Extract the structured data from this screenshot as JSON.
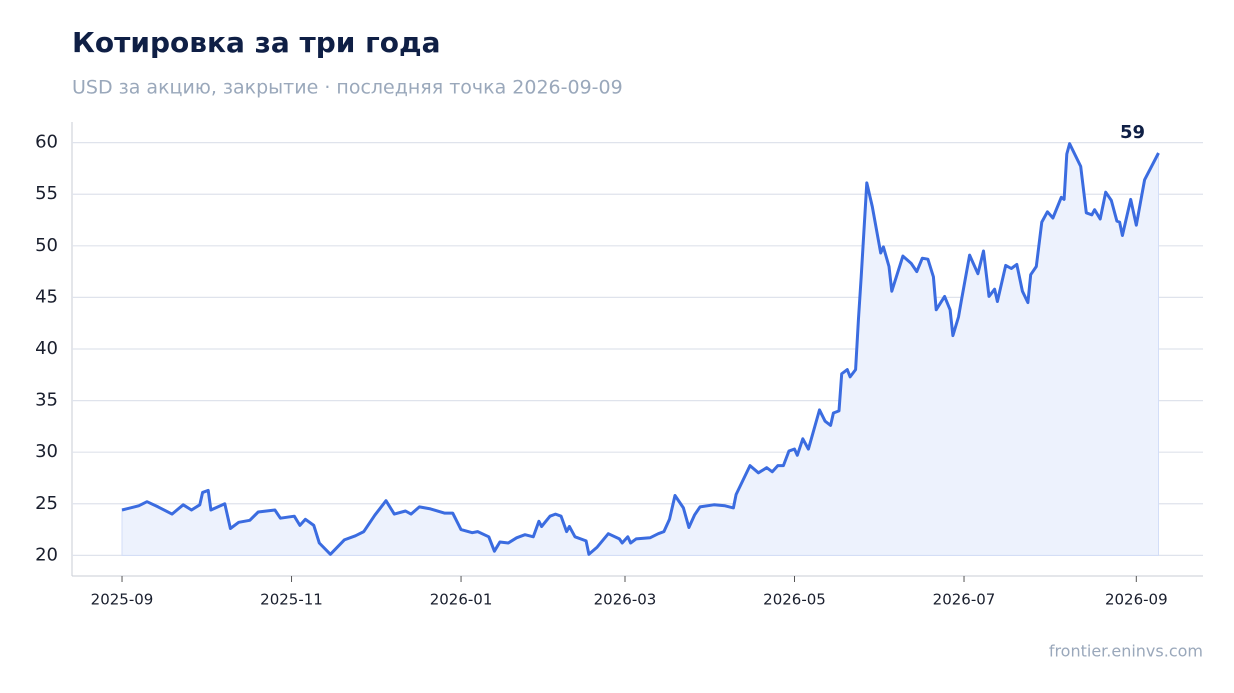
{
  "chart_data": {
    "type": "line",
    "title": "Котировка за три года",
    "subtitle": "USD за акцию, закрытие · последняя точка 2026-09-09",
    "source": "frontier.eninvs.com",
    "x": [
      "2025-09-01",
      "2025-09-07",
      "2025-09-10",
      "2025-09-14",
      "2025-09-19",
      "2025-09-23",
      "2025-09-26",
      "2025-09-29",
      "2025-09-30",
      "2025-10-02",
      "2025-10-03",
      "2025-10-08",
      "2025-10-10",
      "2025-10-13",
      "2025-10-17",
      "2025-10-20",
      "2025-10-26",
      "2025-10-28",
      "2025-11-02",
      "2025-11-04",
      "2025-11-06",
      "2025-11-09",
      "2025-11-11",
      "2025-11-15",
      "2025-11-20",
      "2025-11-24",
      "2025-11-27",
      "2025-12-01",
      "2025-12-05",
      "2025-12-08",
      "2025-12-12",
      "2025-12-14",
      "2025-12-17",
      "2025-12-21",
      "2025-12-26",
      "2025-12-29",
      "2026-01-01",
      "2026-01-05",
      "2026-01-07",
      "2026-01-11",
      "2026-01-13",
      "2026-01-15",
      "2026-01-18",
      "2026-01-21",
      "2026-01-24",
      "2026-01-27",
      "2026-01-29",
      "2026-01-30",
      "2026-02-02",
      "2026-02-04",
      "2026-02-06",
      "2026-02-08",
      "2026-02-09",
      "2026-02-11",
      "2026-02-15",
      "2026-02-16",
      "2026-02-19",
      "2026-02-23",
      "2026-02-27",
      "2026-02-28",
      "2026-03-02",
      "2026-03-03",
      "2026-03-05",
      "2026-03-10",
      "2026-03-13",
      "2026-03-15",
      "2026-03-17",
      "2026-03-19",
      "2026-03-22",
      "2026-03-24",
      "2026-03-26",
      "2026-03-28",
      "2026-04-02",
      "2026-04-06",
      "2026-04-09",
      "2026-04-10",
      "2026-04-15",
      "2026-04-18",
      "2026-04-21",
      "2026-04-23",
      "2026-04-25",
      "2026-04-27",
      "2026-04-29",
      "2026-05-01",
      "2026-05-02",
      "2026-05-04",
      "2026-05-06",
      "2026-05-10",
      "2026-05-12",
      "2026-05-14",
      "2026-05-15",
      "2026-05-17",
      "2026-05-18",
      "2026-05-20",
      "2026-05-21",
      "2026-05-23",
      "2026-05-24",
      "2026-05-25",
      "2026-05-27",
      "2026-05-29",
      "2026-06-01",
      "2026-06-02",
      "2026-06-04",
      "2026-06-05",
      "2026-06-09",
      "2026-06-12",
      "2026-06-14",
      "2026-06-16",
      "2026-06-18",
      "2026-06-20",
      "2026-06-21",
      "2026-06-24",
      "2026-06-26",
      "2026-06-27",
      "2026-06-29",
      "2026-06-30",
      "2026-07-03",
      "2026-07-06",
      "2026-07-08",
      "2026-07-10",
      "2026-07-12",
      "2026-07-13",
      "2026-07-16",
      "2026-07-18",
      "2026-07-20",
      "2026-07-22",
      "2026-07-24",
      "2026-07-25",
      "2026-07-27",
      "2026-07-29",
      "2026-07-31",
      "2026-08-02",
      "2026-08-05",
      "2026-08-06",
      "2026-08-07",
      "2026-08-08",
      "2026-08-12",
      "2026-08-14",
      "2026-08-16",
      "2026-08-17",
      "2026-08-19",
      "2026-08-21",
      "2026-08-23",
      "2026-08-25",
      "2026-08-26",
      "2026-08-27",
      "2026-08-30",
      "2026-09-01",
      "2026-09-04",
      "2026-09-09"
    ],
    "series": [
      {
        "name": "Котировка",
        "color": "#3b6ce0",
        "fill": "#edf2fd",
        "values": [
          24.4,
          24.8,
          25.2,
          24.7,
          24.0,
          24.9,
          24.4,
          24.9,
          26.1,
          26.3,
          24.4,
          25.0,
          22.6,
          23.2,
          23.4,
          24.2,
          24.4,
          23.6,
          23.8,
          22.9,
          23.5,
          22.9,
          21.2,
          20.1,
          21.5,
          21.9,
          22.3,
          23.9,
          25.3,
          24.0,
          24.3,
          24.0,
          24.7,
          24.5,
          24.1,
          24.1,
          22.5,
          22.2,
          22.3,
          21.8,
          20.4,
          21.3,
          21.2,
          21.7,
          22.0,
          21.8,
          23.3,
          22.8,
          23.8,
          24.0,
          23.8,
          22.3,
          22.8,
          21.8,
          21.4,
          20.1,
          20.8,
          22.1,
          21.6,
          21.2,
          21.8,
          21.2,
          21.6,
          21.7,
          22.1,
          22.3,
          23.5,
          25.8,
          24.6,
          22.7,
          23.9,
          24.7,
          24.9,
          24.8,
          24.6,
          25.9,
          28.7,
          28.0,
          28.5,
          28.1,
          28.7,
          28.7,
          30.1,
          30.3,
          29.7,
          31.3,
          30.3,
          34.1,
          33.0,
          32.6,
          33.8,
          34.0,
          37.6,
          38.0,
          37.3,
          38.0,
          42.8,
          47.0,
          56.1,
          53.8,
          49.3,
          49.9,
          48.0,
          45.6,
          49.0,
          48.3,
          47.5,
          48.8,
          48.7,
          47.0,
          43.8,
          45.1,
          43.8,
          41.3,
          43.1,
          44.6,
          49.1,
          47.3,
          49.5,
          45.1,
          45.8,
          44.6,
          48.1,
          47.8,
          48.2,
          45.6,
          44.5,
          47.2,
          48.0,
          52.3,
          53.3,
          52.7,
          54.7,
          54.5,
          58.9,
          59.9,
          57.7,
          53.2,
          53.0,
          53.5,
          52.6,
          55.2,
          54.4,
          52.4,
          52.3,
          51.0,
          54.5,
          52.0,
          56.4,
          59
        ]
      }
    ],
    "xlim": [
      "2025-08-14",
      "2026-09-25"
    ],
    "xticks": [
      {
        "value": "2025-09-01",
        "label": "2025-09"
      },
      {
        "value": "2025-11-01",
        "label": "2025-11"
      },
      {
        "value": "2026-01-01",
        "label": "2026-01"
      },
      {
        "value": "2026-03-01",
        "label": "2026-03"
      },
      {
        "value": "2026-05-01",
        "label": "2026-05"
      },
      {
        "value": "2026-07-01",
        "label": "2026-07"
      },
      {
        "value": "2026-09-01",
        "label": "2026-09"
      }
    ],
    "ylim": [
      18,
      62
    ],
    "yticks": [
      20,
      25,
      30,
      35,
      40,
      45,
      50,
      55,
      60
    ],
    "grid": true
  }
}
